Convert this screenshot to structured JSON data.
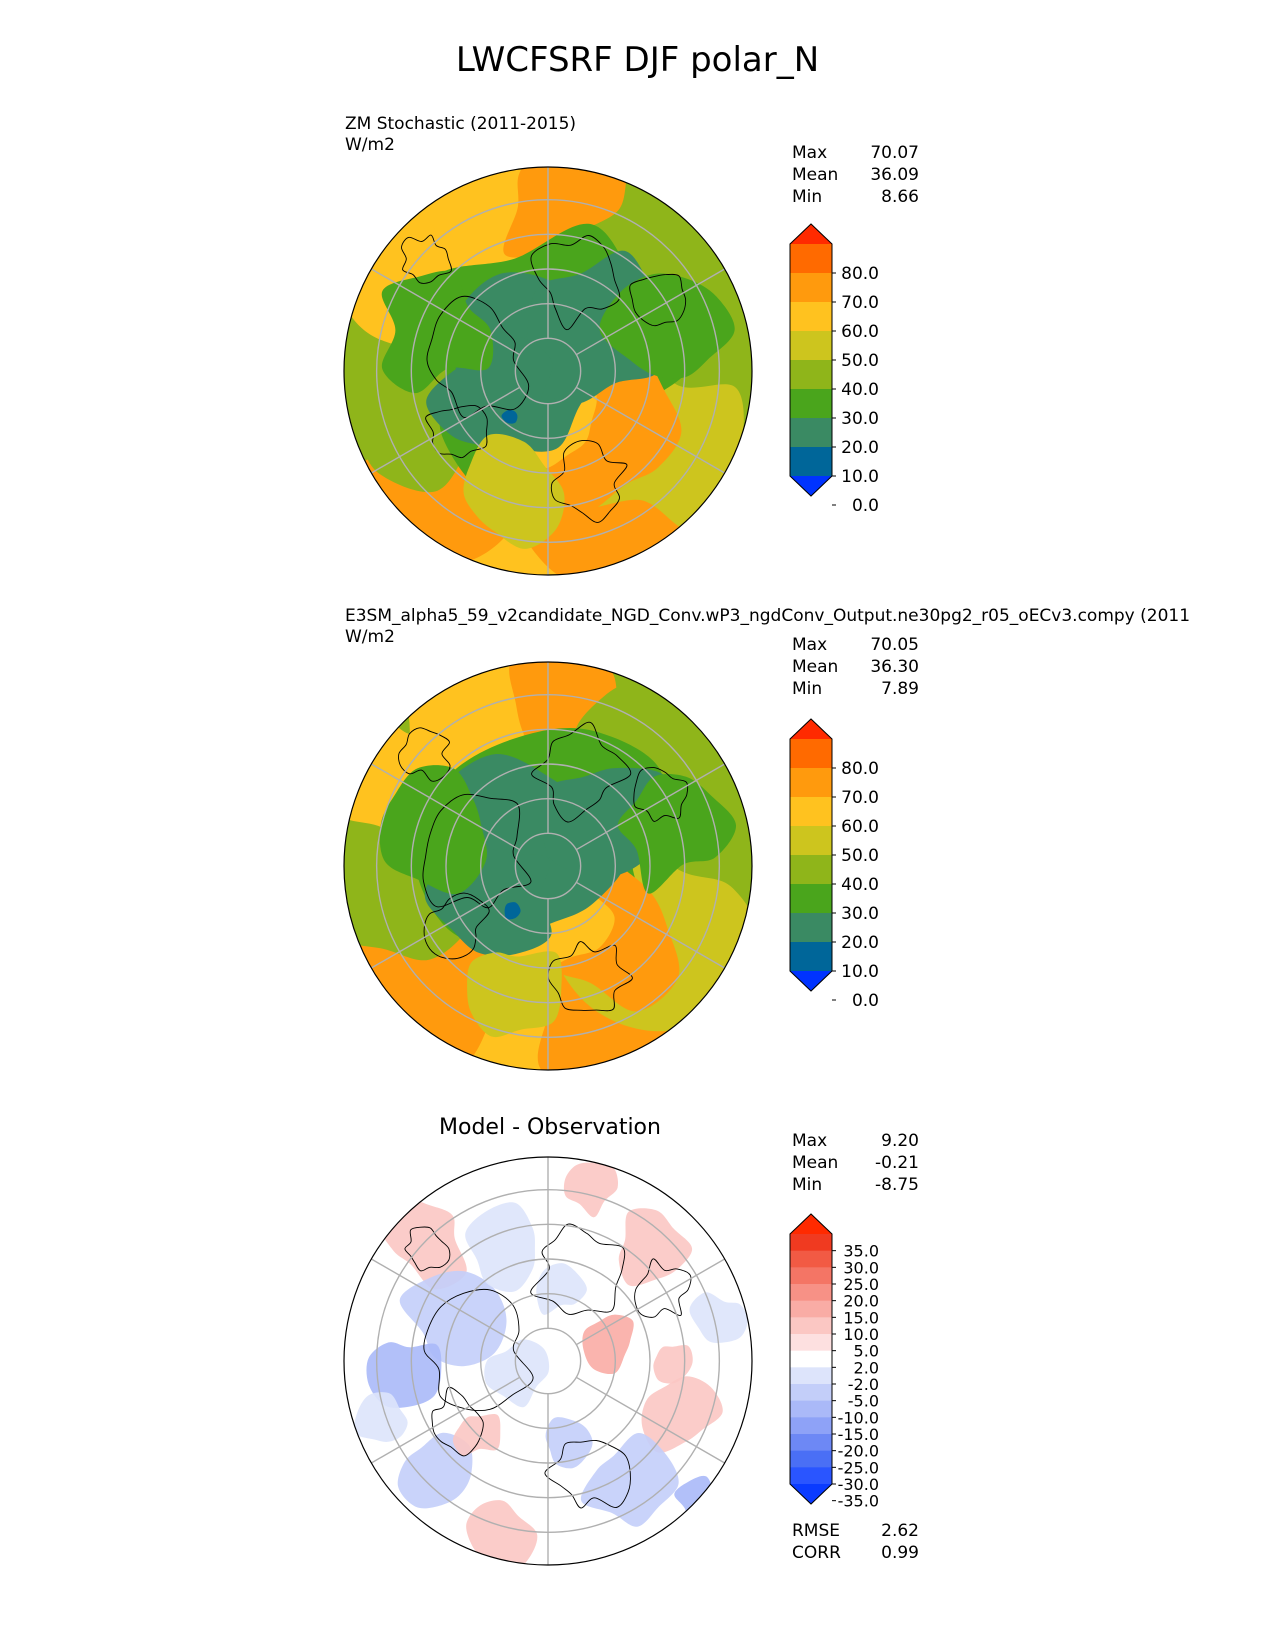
{
  "title": "LWCFSRF DJF polar_N",
  "colors": {
    "main_bins": [
      "#0033ff",
      "#006699",
      "#3a8a63",
      "#4aa51c",
      "#8fb51a",
      "#cdc51e",
      "#ffc21f",
      "#ff9a0d",
      "#ff6a00",
      "#ff2a00"
    ],
    "diff_bins": [
      "#0a3bff",
      "#2a55ff",
      "#4a6ff5",
      "#6d88f5",
      "#8ea2f7",
      "#aab9f8",
      "#c3cef9",
      "#dde4fb",
      "#ffffff",
      "#fde0e0",
      "#fbc7c3",
      "#f9aca5",
      "#f79186",
      "#f47565",
      "#f25a44",
      "#f03a20",
      "#ff2a00"
    ]
  },
  "panels": [
    {
      "title": "ZM Stochastic (2011-2015)",
      "units": "W/m2",
      "stats": {
        "max_label": "Max",
        "max": "70.07",
        "mean_label": "Mean",
        "mean": "36.09",
        "min_label": "Min",
        "min": "8.66"
      },
      "colorbar_labels": [
        "80.0",
        "70.0",
        "60.0",
        "50.0",
        "40.0",
        "30.0",
        "20.0",
        "10.0",
        "0.0"
      ]
    },
    {
      "title": "E3SM_alpha5_59_v2candidate_NGD_Conv.wP3_ngdConv_Output.ne30pg2_r05_oECv3.compy (2011",
      "units": "W/m2",
      "stats": {
        "max_label": "Max",
        "max": "70.05",
        "mean_label": "Mean",
        "mean": "36.30",
        "min_label": "Min",
        "min": "7.89"
      },
      "colorbar_labels": [
        "80.0",
        "70.0",
        "60.0",
        "50.0",
        "40.0",
        "30.0",
        "20.0",
        "10.0",
        "0.0"
      ]
    },
    {
      "title": "Model - Observation",
      "stats": {
        "max_label": "Max",
        "max": "9.20",
        "mean_label": "Mean",
        "mean": "-0.21",
        "min_label": "Min",
        "min": "-8.75"
      },
      "colorbar_labels": [
        "35.0",
        "30.0",
        "25.0",
        "20.0",
        "15.0",
        "10.0",
        "5.0",
        "2.0",
        "-2.0",
        "-5.0",
        "-10.0",
        "-15.0",
        "-20.0",
        "-25.0",
        "-30.0",
        "-35.0"
      ],
      "metrics": {
        "rmse_label": "RMSE",
        "rmse": "2.62",
        "corr_label": "CORR",
        "corr": "0.99"
      }
    }
  ],
  "chart_data": [
    {
      "type": "heatmap",
      "projection": "north polar stereographic",
      "title": "ZM Stochastic (2011-2015)",
      "units": "W/m2",
      "colorbar_levels": [
        0,
        10,
        20,
        30,
        40,
        50,
        60,
        70,
        80
      ],
      "colorbar_extend": "both",
      "max": 70.07,
      "mean": 36.09,
      "min": 8.66
    },
    {
      "type": "heatmap",
      "projection": "north polar stereographic",
      "title": "E3SM_alpha5_59_v2candidate_NGD_Conv.wP3_ngdConv_Output.ne30pg2_r05_oECv3.compy (2011",
      "units": "W/m2",
      "colorbar_levels": [
        0,
        10,
        20,
        30,
        40,
        50,
        60,
        70,
        80
      ],
      "colorbar_extend": "both",
      "max": 70.05,
      "mean": 36.3,
      "min": 7.89
    },
    {
      "type": "heatmap",
      "projection": "north polar stereographic",
      "title": "Model - Observation",
      "colorbar_levels": [
        -35,
        -30,
        -25,
        -20,
        -15,
        -10,
        -5,
        -2,
        2,
        5,
        10,
        15,
        20,
        25,
        30,
        35
      ],
      "colorbar_extend": "both",
      "max": 9.2,
      "mean": -0.21,
      "min": -8.75,
      "rmse": 2.62,
      "corr": 0.99
    }
  ]
}
